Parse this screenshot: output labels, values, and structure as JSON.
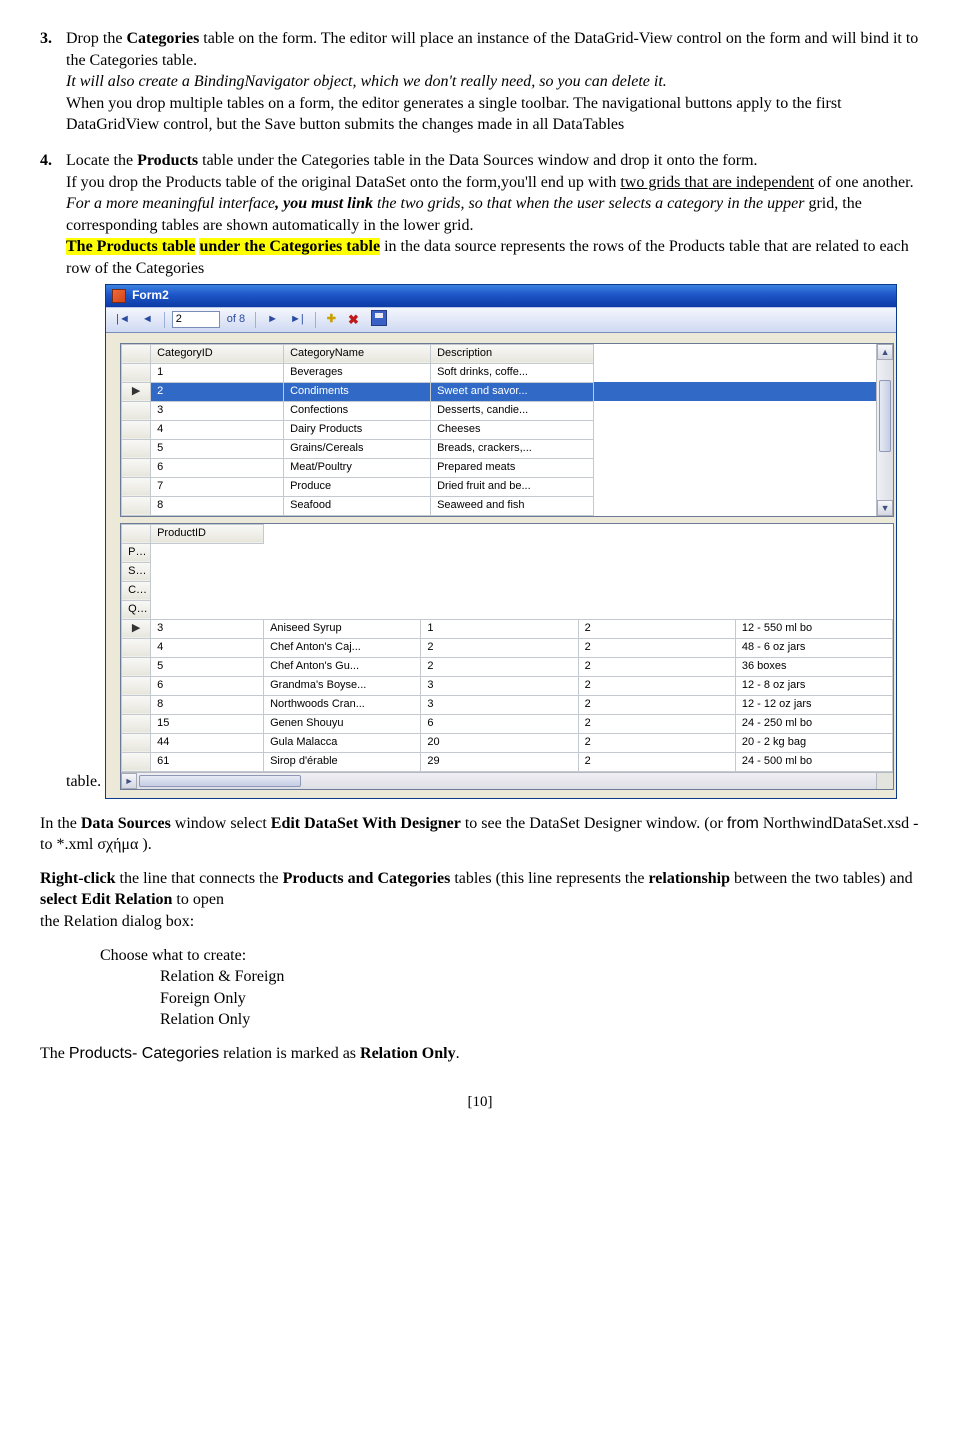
{
  "step3": {
    "num": "3.",
    "line1_a": "Drop the ",
    "line1_b": "Categories",
    "line1_c": " table on the form. The editor will place an instance of the DataGrid-View control on the form and will bind it to the Categories table.",
    "line2": "It will also create a BindingNavigator object, which we don't really need, so you can delete it.",
    "line3": "When you drop multiple tables on a form, the editor generates a single toolbar. The navigational buttons apply to the first DataGridView control, but the Save button submits the changes made in all DataTables"
  },
  "step4": {
    "num": "4.",
    "p1_a": "Locate the ",
    "p1_b": "Products",
    "p1_c": " table under the Categories table in the Data Sources window and drop it onto the form.",
    "p2_a": "If you drop the Products table of the original DataSet onto the form,you'll end up with ",
    "p2_u1": "two grids that are independent",
    "p2_b": " of one another.",
    "p3_a": "For a more meaningful interface",
    "p3_b": ", you must link",
    "p3_c": " the two grids, so that when the user selects a category in the upper ",
    "p3_d": "grid, the corresponding tables are shown automatically in the lower grid.",
    "p4_hl1": "The Products table",
    "p4_mid": " ",
    "p4_hl2": "under the Categories table",
    "p4_c": " in the data source represents the rows of the Products table that are related to each row of the Categories"
  },
  "win": {
    "title": "Form2",
    "nav_pos": "2",
    "nav_of": "of 8"
  },
  "grid1": {
    "headers": [
      "CategoryID",
      "CategoryName",
      "Description"
    ],
    "rows": [
      {
        "sel": false,
        "cells": [
          "1",
          "Beverages",
          "Soft drinks, coffe..."
        ]
      },
      {
        "sel": true,
        "cells": [
          "2",
          "Condiments",
          "Sweet and savor..."
        ]
      },
      {
        "sel": false,
        "cells": [
          "3",
          "Confections",
          "Desserts, candie..."
        ]
      },
      {
        "sel": false,
        "cells": [
          "4",
          "Dairy Products",
          "Cheeses"
        ]
      },
      {
        "sel": false,
        "cells": [
          "5",
          "Grains/Cereals",
          "Breads, crackers,..."
        ]
      },
      {
        "sel": false,
        "cells": [
          "6",
          "Meat/Poultry",
          "Prepared meats"
        ]
      },
      {
        "sel": false,
        "cells": [
          "7",
          "Produce",
          "Dried fruit and be..."
        ]
      },
      {
        "sel": false,
        "cells": [
          "8",
          "Seafood",
          "Seaweed and fish"
        ]
      }
    ]
  },
  "grid2": {
    "headers": [
      "ProductID",
      "ProductName",
      "SupplierID",
      "CategoryID",
      "QuantityPerU"
    ],
    "rows": [
      {
        "cells": [
          "3",
          "Aniseed Syrup",
          "1",
          "2",
          "12 - 550 ml bo"
        ]
      },
      {
        "cells": [
          "4",
          "Chef Anton's Caj...",
          "2",
          "2",
          "48 - 6 oz jars"
        ]
      },
      {
        "cells": [
          "5",
          "Chef Anton's Gu...",
          "2",
          "2",
          "36 boxes"
        ]
      },
      {
        "cells": [
          "6",
          "Grandma's Boyse...",
          "3",
          "2",
          "12 - 8 oz jars"
        ]
      },
      {
        "cells": [
          "8",
          "Northwoods Cran...",
          "3",
          "2",
          "12 - 12 oz jars"
        ]
      },
      {
        "cells": [
          "15",
          "Genen Shouyu",
          "6",
          "2",
          "24 - 250 ml bo"
        ]
      },
      {
        "cells": [
          "44",
          "Gula Malacca",
          "20",
          "2",
          "20 - 2 kg bag"
        ]
      },
      {
        "cells": [
          "61",
          "Sirop d'érable",
          "29",
          "2",
          "24 - 500 ml bo"
        ]
      }
    ]
  },
  "below": {
    "table_word": "table.",
    "ds1_a": "In the ",
    "ds1_b": "Data Sources",
    "ds1_c": " window select ",
    "ds1_d": "Edit DataSet With Designer",
    "ds1_e": " to see the DataSet Designer window. (or  ",
    "ds1_f": "from",
    "ds1_g": " NorthwindDataSet.xsd  - to *.xml σχήμα ).",
    "rc_a": "Right-click",
    "rc_b": " the line that connects the ",
    "rc_c": "Products and Categories",
    "rc_d": " tables (this line represents the ",
    "rc_e": "relationship",
    "rc_f": " between the two tables) and ",
    "rc_g": "select Edit Relation",
    "rc_h": " to open",
    "rc_i": "the Relation dialog box:",
    "choose": "Choose what to create:",
    "opt1": "Relation & Foreign",
    "opt2": "Foreign Only",
    "opt3": "Relation Only",
    "last_a": "The ",
    "last_b": "Products- Categories",
    "last_c": " relation is marked as ",
    "last_d": "Relation Only",
    "last_e": "."
  },
  "pagenum": "[10]"
}
